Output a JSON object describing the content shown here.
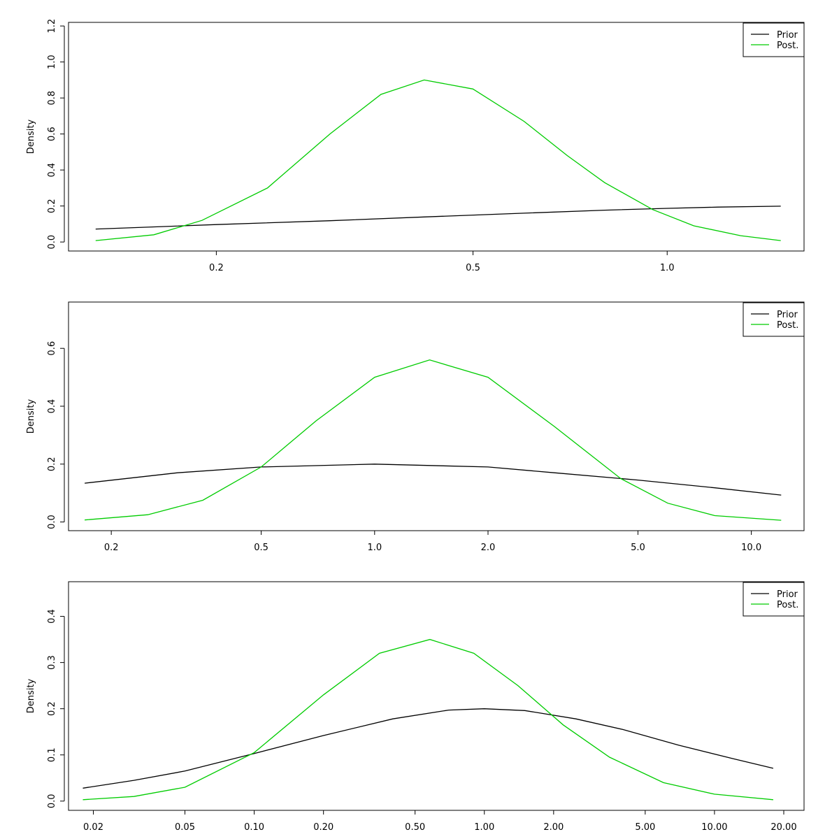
{
  "chart_data": [
    {
      "type": "line",
      "xscale": "log",
      "xlim": [
        0.118,
        1.63
      ],
      "ylim": [
        -0.05,
        1.22
      ],
      "xticks": [
        0.2,
        0.5,
        1.0
      ],
      "xtick_labels": [
        "0.2",
        "0.5",
        "1.0"
      ],
      "yticks": [
        0,
        0.2,
        0.4,
        0.6,
        0.8,
        1.0,
        1.2
      ],
      "ytick_labels": [
        "0.0",
        "0.2",
        "0.4",
        "0.6",
        "0.8",
        "1.0",
        "1.2"
      ],
      "ylabel": "Density",
      "xlabel": "",
      "legend": {
        "position": "top-right",
        "entries": [
          "Prior",
          "Post."
        ]
      },
      "series": [
        {
          "name": "Prior",
          "color": "#000000",
          "x": [
            0.13,
            0.2,
            0.3,
            0.42,
            0.6,
            0.8,
            1.0,
            1.2,
            1.5
          ],
          "y": [
            0.072,
            0.097,
            0.118,
            0.139,
            0.16,
            0.177,
            0.187,
            0.194,
            0.199
          ]
        },
        {
          "name": "Post.",
          "color": "#00cc00",
          "x": [
            0.13,
            0.16,
            0.19,
            0.24,
            0.3,
            0.36,
            0.42,
            0.5,
            0.6,
            0.7,
            0.8,
            0.95,
            1.1,
            1.3,
            1.5
          ],
          "y": [
            0.008,
            0.04,
            0.12,
            0.3,
            0.6,
            0.82,
            0.9,
            0.85,
            0.67,
            0.48,
            0.33,
            0.18,
            0.09,
            0.035,
            0.008
          ]
        }
      ]
    },
    {
      "type": "line",
      "xscale": "log",
      "xlim": [
        0.154,
        13.8
      ],
      "ylim": [
        -0.03,
        0.76
      ],
      "xticks": [
        0.2,
        0.5,
        1.0,
        2.0,
        5.0,
        10.0
      ],
      "xtick_labels": [
        "0.2",
        "0.5",
        "1.0",
        "2.0",
        "5.0",
        "10.0"
      ],
      "yticks": [
        0,
        0.2,
        0.4,
        0.6
      ],
      "ytick_labels": [
        "0.0",
        "0.2",
        "0.4",
        "0.6"
      ],
      "ylabel": "Density",
      "xlabel": "",
      "legend": {
        "position": "top-right",
        "entries": [
          "Prior",
          "Post."
        ]
      },
      "series": [
        {
          "name": "Prior",
          "color": "#000000",
          "x": [
            0.17,
            0.3,
            0.5,
            1.0,
            2.0,
            3.0,
            5.0,
            8.0,
            12.0
          ],
          "y": [
            0.134,
            0.17,
            0.19,
            0.2,
            0.19,
            0.17,
            0.145,
            0.118,
            0.093
          ]
        },
        {
          "name": "Post.",
          "color": "#00cc00",
          "x": [
            0.17,
            0.25,
            0.35,
            0.5,
            0.7,
            1.0,
            1.4,
            2.0,
            3.0,
            4.5,
            6.0,
            8.0,
            12.0
          ],
          "y": [
            0.007,
            0.025,
            0.075,
            0.19,
            0.35,
            0.5,
            0.56,
            0.5,
            0.33,
            0.15,
            0.065,
            0.022,
            0.006
          ]
        }
      ]
    },
    {
      "type": "line",
      "xscale": "log",
      "xlim": [
        0.0156,
        24.5
      ],
      "ylim": [
        -0.02,
        0.475
      ],
      "xticks": [
        0.02,
        0.05,
        0.1,
        0.2,
        0.5,
        1.0,
        2.0,
        5.0,
        10.0,
        20.0
      ],
      "xtick_labels": [
        "0.02",
        "0.05",
        "0.10",
        "0.20",
        "0.50",
        "1.00",
        "2.00",
        "5.00",
        "10.00",
        "20.00"
      ],
      "yticks": [
        0,
        0.1,
        0.2,
        0.3,
        0.4
      ],
      "ytick_labels": [
        "0.0",
        "0.1",
        "0.2",
        "0.3",
        "0.4"
      ],
      "ylabel": "Density",
      "xlabel": "",
      "legend": {
        "position": "top-right",
        "entries": [
          "Prior",
          "Post."
        ]
      },
      "series": [
        {
          "name": "Prior",
          "color": "#000000",
          "x": [
            0.018,
            0.03,
            0.05,
            0.1,
            0.2,
            0.4,
            0.7,
            1.0,
            1.5,
            2.5,
            4.0,
            7.0,
            12.0,
            18.0
          ],
          "y": [
            0.028,
            0.045,
            0.065,
            0.103,
            0.142,
            0.178,
            0.197,
            0.2,
            0.196,
            0.178,
            0.155,
            0.121,
            0.092,
            0.071
          ]
        },
        {
          "name": "Post.",
          "color": "#00cc00",
          "x": [
            0.018,
            0.03,
            0.05,
            0.1,
            0.2,
            0.35,
            0.58,
            0.9,
            1.4,
            2.2,
            3.5,
            6.0,
            10.0,
            18.0
          ],
          "y": [
            0.003,
            0.01,
            0.03,
            0.105,
            0.23,
            0.32,
            0.35,
            0.32,
            0.25,
            0.165,
            0.095,
            0.04,
            0.015,
            0.003
          ]
        }
      ]
    }
  ]
}
